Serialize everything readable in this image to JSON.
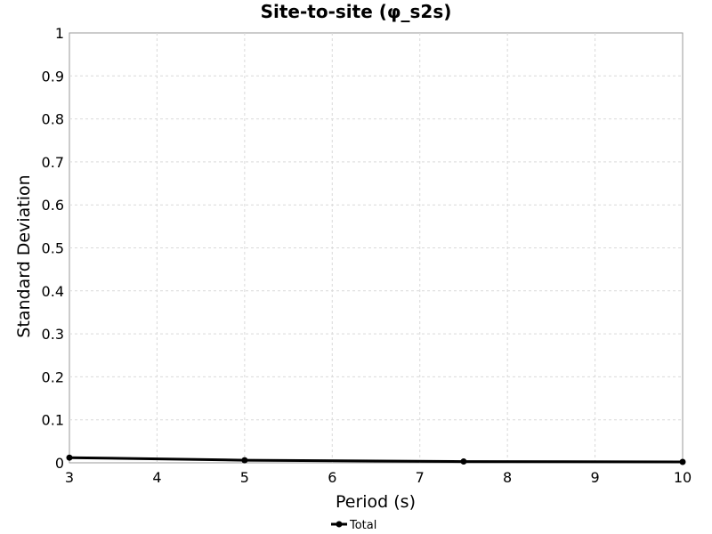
{
  "chart_data": {
    "type": "line",
    "title": "Site-to-site (φ_s2s)",
    "xlabel": "Period (s)",
    "ylabel": "Standard Deviation",
    "xlim": [
      3,
      10
    ],
    "ylim": [
      0,
      1
    ],
    "xticks": [
      "3",
      "4",
      "5",
      "6",
      "7",
      "8",
      "9",
      "10"
    ],
    "yticks": [
      "0",
      "0.1",
      "0.2",
      "0.3",
      "0.4",
      "0.5",
      "0.6",
      "0.7",
      "0.8",
      "0.9",
      "1"
    ],
    "grid": true,
    "legend_position": "bottom-center",
    "series": [
      {
        "name": "Total",
        "color": "#000000",
        "marker": "circle",
        "x": [
          3,
          5,
          7.5,
          10
        ],
        "y": [
          0.012,
          0.006,
          0.003,
          0.002
        ]
      }
    ]
  }
}
